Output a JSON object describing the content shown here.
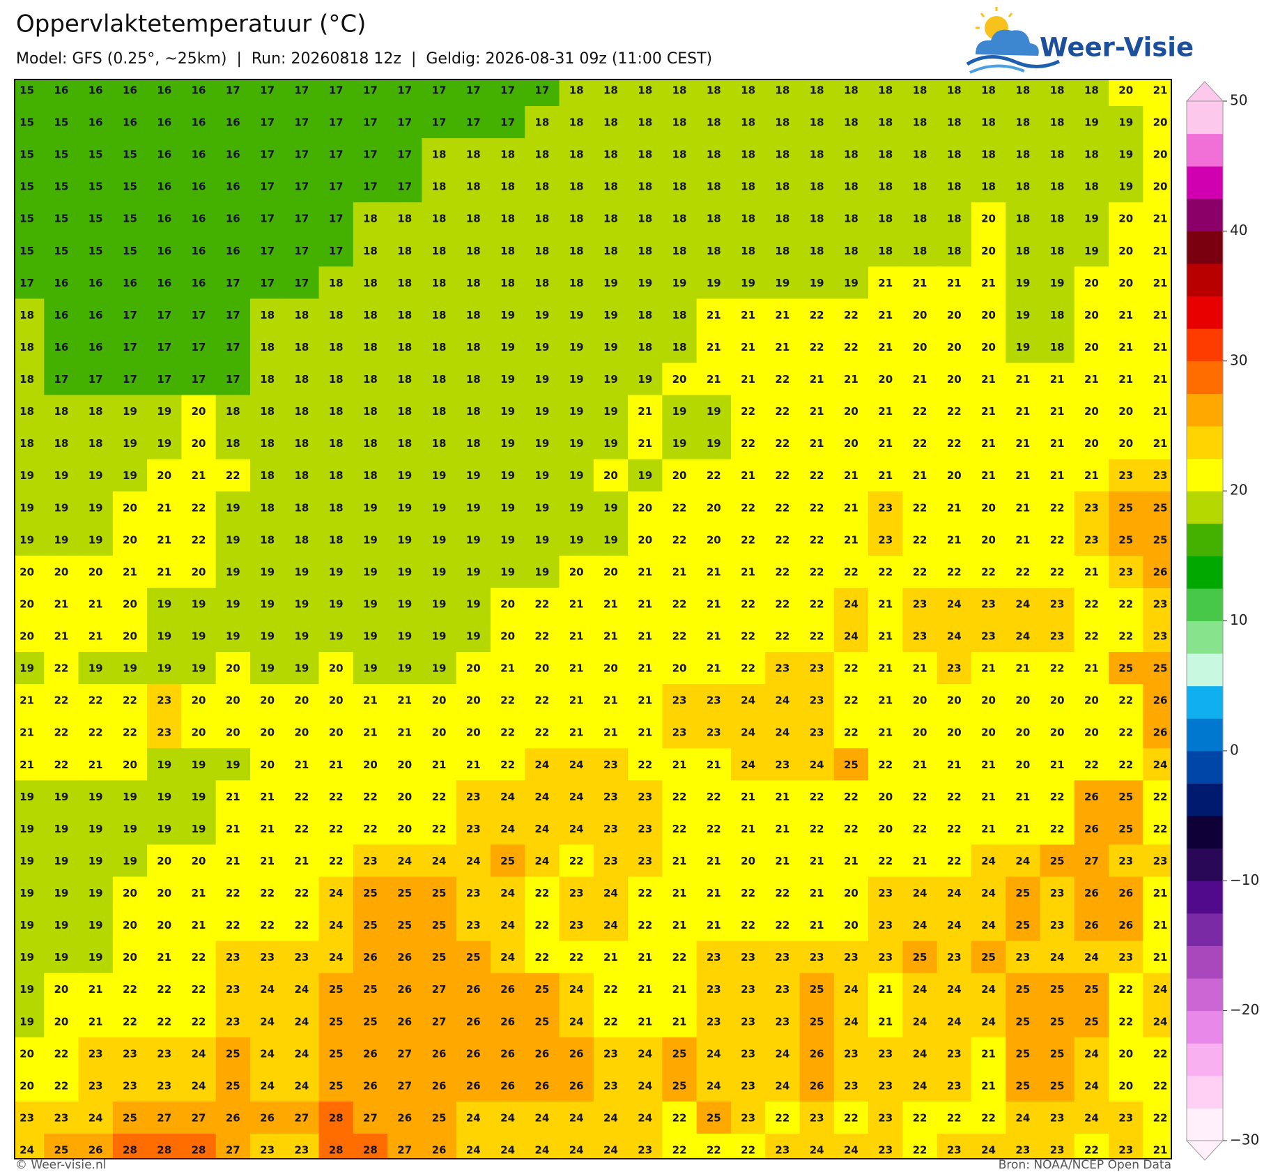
{
  "header": {
    "title": "Oppervlaktetemperatuur (°C)",
    "subtitle": "Model: GFS (0.25°, ~25km)  |  Run: 20260818 12z  |  Geldig: 2026-08-31 09z (11:00 CEST)"
  },
  "logo": {
    "text": "Weer-Visie"
  },
  "map": {
    "rows": [
      [
        15,
        16,
        16,
        16,
        16,
        16,
        17,
        17,
        17,
        17,
        17,
        17,
        17,
        17,
        17,
        17,
        18,
        18,
        18,
        18,
        18,
        18,
        18,
        18,
        18,
        18,
        18,
        18,
        18,
        18,
        18,
        18,
        20,
        21
      ],
      [
        15,
        15,
        16,
        16,
        16,
        16,
        16,
        17,
        17,
        17,
        17,
        17,
        17,
        17,
        17,
        18,
        18,
        18,
        18,
        18,
        18,
        18,
        18,
        18,
        18,
        18,
        18,
        18,
        18,
        18,
        18,
        19,
        19,
        20
      ],
      [
        15,
        15,
        15,
        15,
        16,
        16,
        16,
        17,
        17,
        17,
        17,
        17,
        18,
        18,
        18,
        18,
        18,
        18,
        18,
        18,
        18,
        18,
        18,
        18,
        18,
        18,
        18,
        18,
        18,
        18,
        18,
        18,
        19,
        20
      ],
      [
        15,
        15,
        15,
        15,
        16,
        16,
        16,
        17,
        17,
        17,
        17,
        17,
        18,
        18,
        18,
        18,
        18,
        18,
        18,
        18,
        18,
        18,
        18,
        18,
        18,
        18,
        18,
        18,
        18,
        18,
        18,
        18,
        19,
        20
      ],
      [
        15,
        15,
        15,
        15,
        16,
        16,
        16,
        17,
        17,
        17,
        18,
        18,
        18,
        18,
        18,
        18,
        18,
        18,
        18,
        18,
        18,
        18,
        18,
        18,
        18,
        18,
        18,
        18,
        20,
        18,
        18,
        19,
        20,
        21
      ],
      [
        15,
        15,
        15,
        15,
        16,
        16,
        16,
        17,
        17,
        17,
        18,
        18,
        18,
        18,
        18,
        18,
        18,
        18,
        18,
        18,
        18,
        18,
        18,
        18,
        18,
        18,
        18,
        18,
        20,
        18,
        18,
        19,
        20,
        21
      ],
      [
        17,
        16,
        16,
        16,
        16,
        16,
        17,
        17,
        17,
        18,
        18,
        18,
        18,
        18,
        18,
        18,
        18,
        19,
        19,
        19,
        19,
        19,
        19,
        19,
        19,
        21,
        21,
        21,
        21,
        19,
        19,
        20,
        20,
        21
      ],
      [
        18,
        16,
        16,
        17,
        17,
        17,
        17,
        18,
        18,
        18,
        18,
        18,
        18,
        18,
        19,
        19,
        19,
        19,
        18,
        18,
        21,
        21,
        21,
        22,
        22,
        21,
        20,
        20,
        20,
        19,
        18,
        20,
        21,
        21
      ],
      [
        18,
        16,
        16,
        17,
        17,
        17,
        17,
        18,
        18,
        18,
        18,
        18,
        18,
        18,
        19,
        19,
        19,
        19,
        18,
        18,
        21,
        21,
        21,
        22,
        22,
        21,
        20,
        20,
        20,
        19,
        18,
        20,
        21,
        21
      ],
      [
        18,
        17,
        17,
        17,
        17,
        17,
        17,
        18,
        18,
        18,
        18,
        18,
        18,
        18,
        19,
        19,
        19,
        19,
        19,
        20,
        21,
        21,
        22,
        21,
        21,
        20,
        21,
        20,
        21,
        21,
        21,
        21,
        21,
        21
      ],
      [
        18,
        18,
        18,
        19,
        19,
        20,
        18,
        18,
        18,
        18,
        18,
        18,
        18,
        18,
        19,
        19,
        19,
        19,
        21,
        19,
        19,
        22,
        22,
        21,
        20,
        21,
        22,
        22,
        21,
        21,
        21,
        20,
        20,
        21
      ],
      [
        18,
        18,
        18,
        19,
        19,
        20,
        18,
        18,
        18,
        18,
        18,
        18,
        18,
        18,
        19,
        19,
        19,
        19,
        21,
        19,
        19,
        22,
        22,
        21,
        20,
        21,
        22,
        22,
        21,
        21,
        21,
        20,
        20,
        21
      ],
      [
        19,
        19,
        19,
        19,
        20,
        21,
        22,
        18,
        18,
        18,
        18,
        19,
        19,
        19,
        19,
        19,
        19,
        20,
        19,
        20,
        22,
        21,
        22,
        22,
        21,
        21,
        21,
        20,
        21,
        21,
        21,
        21,
        23,
        23
      ],
      [
        19,
        19,
        19,
        20,
        21,
        22,
        19,
        18,
        18,
        18,
        19,
        19,
        19,
        19,
        19,
        19,
        19,
        19,
        20,
        22,
        20,
        22,
        22,
        22,
        21,
        23,
        22,
        21,
        20,
        21,
        22,
        23,
        25,
        25
      ],
      [
        19,
        19,
        19,
        20,
        21,
        22,
        19,
        18,
        18,
        18,
        19,
        19,
        19,
        19,
        19,
        19,
        19,
        19,
        20,
        22,
        20,
        22,
        22,
        22,
        21,
        23,
        22,
        21,
        20,
        21,
        22,
        23,
        25,
        25
      ],
      [
        20,
        20,
        20,
        21,
        21,
        20,
        19,
        19,
        19,
        19,
        19,
        19,
        19,
        19,
        19,
        19,
        20,
        20,
        21,
        21,
        21,
        21,
        22,
        22,
        22,
        22,
        22,
        22,
        22,
        22,
        22,
        21,
        23,
        26
      ],
      [
        20,
        21,
        21,
        20,
        19,
        19,
        19,
        19,
        19,
        19,
        19,
        19,
        19,
        19,
        20,
        22,
        21,
        21,
        21,
        22,
        21,
        22,
        22,
        22,
        24,
        21,
        23,
        24,
        23,
        24,
        23,
        22,
        22,
        23
      ],
      [
        20,
        21,
        21,
        20,
        19,
        19,
        19,
        19,
        19,
        19,
        19,
        19,
        19,
        19,
        20,
        22,
        21,
        21,
        21,
        22,
        21,
        22,
        22,
        22,
        24,
        21,
        23,
        24,
        23,
        24,
        23,
        22,
        22,
        23
      ],
      [
        19,
        22,
        19,
        19,
        19,
        19,
        20,
        19,
        19,
        20,
        19,
        19,
        19,
        20,
        21,
        20,
        21,
        20,
        21,
        20,
        21,
        22,
        23,
        23,
        22,
        21,
        21,
        23,
        21,
        21,
        22,
        21,
        25,
        25
      ],
      [
        21,
        22,
        22,
        22,
        23,
        20,
        20,
        20,
        20,
        20,
        21,
        21,
        20,
        20,
        22,
        22,
        21,
        21,
        21,
        23,
        23,
        24,
        24,
        23,
        22,
        21,
        20,
        20,
        20,
        20,
        20,
        20,
        22,
        26
      ],
      [
        21,
        22,
        22,
        22,
        23,
        20,
        20,
        20,
        20,
        20,
        21,
        21,
        20,
        20,
        22,
        22,
        21,
        21,
        21,
        23,
        23,
        24,
        24,
        23,
        22,
        21,
        20,
        20,
        20,
        20,
        20,
        20,
        22,
        26
      ],
      [
        21,
        22,
        21,
        20,
        19,
        19,
        19,
        20,
        21,
        21,
        20,
        20,
        21,
        21,
        22,
        24,
        24,
        23,
        22,
        21,
        21,
        24,
        23,
        24,
        25,
        22,
        21,
        21,
        21,
        20,
        21,
        22,
        22,
        24
      ],
      [
        19,
        19,
        19,
        19,
        19,
        19,
        21,
        21,
        22,
        22,
        22,
        20,
        22,
        23,
        24,
        24,
        24,
        23,
        23,
        22,
        22,
        21,
        21,
        22,
        22,
        20,
        22,
        22,
        21,
        21,
        22,
        26,
        25,
        22
      ],
      [
        19,
        19,
        19,
        19,
        19,
        19,
        21,
        21,
        22,
        22,
        22,
        20,
        22,
        23,
        24,
        24,
        24,
        23,
        23,
        22,
        22,
        21,
        21,
        22,
        22,
        20,
        22,
        22,
        21,
        21,
        22,
        26,
        25,
        22
      ],
      [
        19,
        19,
        19,
        19,
        20,
        20,
        21,
        21,
        21,
        22,
        23,
        24,
        24,
        24,
        25,
        24,
        22,
        23,
        23,
        21,
        21,
        20,
        21,
        21,
        21,
        22,
        21,
        22,
        24,
        24,
        25,
        27,
        23,
        23
      ],
      [
        19,
        19,
        19,
        20,
        20,
        21,
        22,
        22,
        22,
        24,
        25,
        25,
        25,
        23,
        24,
        22,
        23,
        24,
        22,
        21,
        21,
        22,
        22,
        21,
        20,
        23,
        24,
        24,
        24,
        25,
        23,
        26,
        26,
        21
      ],
      [
        19,
        19,
        19,
        20,
        20,
        21,
        22,
        22,
        22,
        24,
        25,
        25,
        25,
        23,
        24,
        22,
        23,
        24,
        22,
        21,
        21,
        22,
        22,
        21,
        20,
        23,
        24,
        24,
        24,
        25,
        23,
        26,
        26,
        21
      ],
      [
        19,
        19,
        19,
        20,
        21,
        22,
        23,
        23,
        23,
        24,
        26,
        26,
        25,
        25,
        24,
        22,
        22,
        21,
        21,
        22,
        23,
        23,
        23,
        23,
        23,
        23,
        25,
        23,
        25,
        23,
        24,
        24,
        23,
        21
      ],
      [
        19,
        20,
        21,
        22,
        22,
        22,
        23,
        24,
        24,
        25,
        25,
        26,
        27,
        26,
        26,
        25,
        24,
        22,
        21,
        21,
        23,
        23,
        23,
        25,
        24,
        21,
        24,
        24,
        24,
        25,
        25,
        25,
        22,
        24
      ],
      [
        19,
        20,
        21,
        22,
        22,
        22,
        23,
        24,
        24,
        25,
        25,
        26,
        27,
        26,
        26,
        25,
        24,
        22,
        21,
        21,
        23,
        23,
        23,
        25,
        24,
        21,
        24,
        24,
        24,
        25,
        25,
        25,
        22,
        24
      ],
      [
        20,
        22,
        23,
        23,
        23,
        24,
        25,
        24,
        24,
        25,
        26,
        27,
        26,
        26,
        26,
        26,
        26,
        23,
        24,
        25,
        24,
        23,
        24,
        26,
        23,
        23,
        24,
        23,
        21,
        25,
        25,
        24,
        20,
        22
      ],
      [
        20,
        22,
        23,
        23,
        23,
        24,
        25,
        24,
        24,
        25,
        26,
        27,
        26,
        26,
        26,
        26,
        26,
        23,
        24,
        25,
        24,
        23,
        24,
        26,
        23,
        23,
        24,
        23,
        21,
        25,
        25,
        24,
        20,
        22
      ],
      [
        23,
        23,
        24,
        25,
        27,
        27,
        26,
        26,
        27,
        28,
        27,
        26,
        25,
        24,
        24,
        24,
        24,
        24,
        24,
        22,
        25,
        23,
        22,
        23,
        22,
        23,
        22,
        22,
        22,
        24,
        23,
        24,
        23,
        22
      ],
      [
        24,
        25,
        26,
        28,
        28,
        28,
        27,
        23,
        23,
        28,
        28,
        27,
        26,
        24,
        24,
        24,
        24,
        24,
        23,
        22,
        22,
        22,
        23,
        24,
        24,
        23,
        22,
        23,
        24,
        23,
        23,
        22,
        23,
        21
      ]
    ]
  },
  "colorbar": {
    "lim": [
      -30,
      50
    ],
    "ticks": [
      50,
      40,
      30,
      20,
      10,
      0,
      {
        "value": -10,
        "label": "−10"
      },
      {
        "value": -20,
        "label": "−20"
      },
      {
        "value": -30,
        "label": "−30"
      }
    ]
  },
  "footer": {
    "left": "© Weer-visie.nl",
    "right": "Bron: NOAA/NCEP Open Data"
  }
}
